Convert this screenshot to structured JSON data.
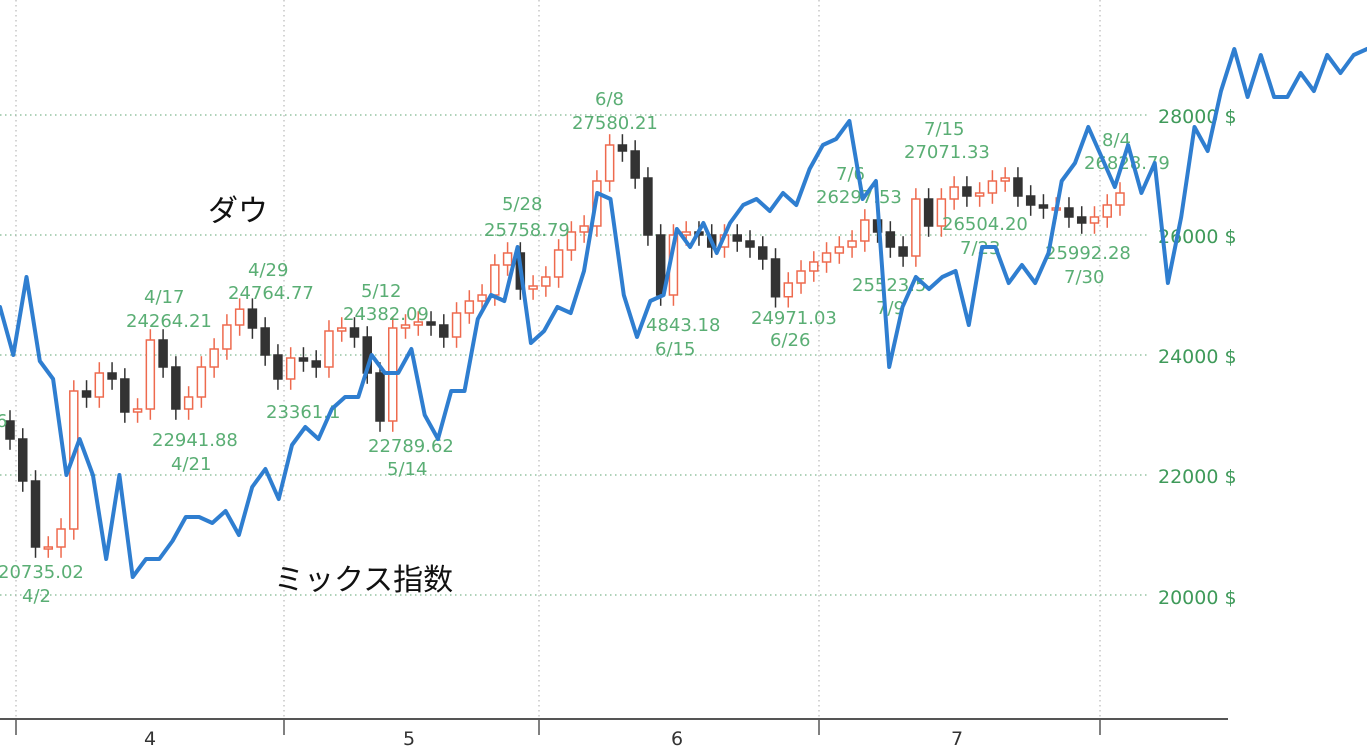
{
  "chart_data": {
    "type": "line",
    "series": [
      {
        "name": "ダウ",
        "kind": "candlestick",
        "color_up": "#ee6a4e",
        "color_down": "#333333",
        "values": [
          22600,
          21900,
          20800,
          20800,
          21100,
          23400,
          23300,
          23700,
          23600,
          23050,
          23100,
          24250,
          23800,
          23100,
          23300,
          23800,
          24100,
          24500,
          24764,
          24450,
          24000,
          23600,
          23950,
          23900,
          23800,
          24400,
          24450,
          24300,
          23700,
          22900,
          24450,
          24500,
          24550,
          24500,
          24300,
          24700,
          24900,
          25000,
          25500,
          25700,
          25100,
          25150,
          25300,
          25750,
          26050,
          26150,
          26900,
          27500,
          27400,
          26950,
          26000,
          25000,
          26000,
          26050,
          26000,
          25800,
          26000,
          25900,
          25800,
          25600,
          24971,
          25200,
          25400,
          25550,
          25700,
          25800,
          25900,
          26250,
          26050,
          25800,
          25650,
          26600,
          26150,
          26600,
          26800,
          26650,
          26700,
          26900,
          26950,
          26650,
          26500,
          26450,
          26450,
          26300,
          26200,
          26300,
          26500,
          26700
        ]
      },
      {
        "name": "ミックス指数",
        "color": "#2f7ed0",
        "values": [
          24800,
          24000,
          25300,
          23900,
          23600,
          22000,
          22600,
          22000,
          20600,
          22000,
          20300,
          20600,
          20600,
          20900,
          21300,
          21300,
          21200,
          21400,
          21000,
          21800,
          22100,
          21600,
          22500,
          22800,
          22600,
          23100,
          23300,
          23300,
          24000,
          23700,
          23700,
          24100,
          23000,
          22600,
          23400,
          23400,
          24600,
          25000,
          24900,
          25800,
          24200,
          24400,
          24800,
          24700,
          25400,
          26700,
          26600,
          25000,
          24300,
          24900,
          25000,
          26100,
          25800,
          26200,
          25700,
          26200,
          26500,
          26600,
          26400,
          26700,
          26500,
          27100,
          27500,
          27600,
          27900,
          26600,
          26900,
          23800,
          24800,
          25300,
          25100,
          25300,
          25400,
          24500,
          25800,
          25800,
          25200,
          25500,
          25200,
          25700,
          26900,
          27200,
          27800,
          27300,
          26800,
          27500,
          26700,
          27200,
          25200,
          26300,
          27800,
          27400,
          28400,
          29100,
          28300,
          29000,
          28300,
          28300,
          28700,
          28400,
          29000,
          28700,
          29000,
          29100
        ]
      }
    ],
    "ylim": [
      18000,
      29500
    ],
    "yticks": [
      "28000 $",
      "26000 $",
      "24000 $",
      "22000 $",
      "20000 $"
    ],
    "ytick_values": [
      28000,
      26000,
      24000,
      22000,
      20000
    ],
    "xticks": [
      "4",
      "5",
      "6",
      "7"
    ],
    "grid": true,
    "series_labels": [
      "ダウ",
      "ミックス指数"
    ],
    "annotations": [
      {
        "text": "6"
      },
      {
        "text": "20735.02"
      },
      {
        "text": "4/2"
      },
      {
        "text": "4/17"
      },
      {
        "text": "24264.21"
      },
      {
        "text": "22941.88"
      },
      {
        "text": "4/21"
      },
      {
        "text": "4/29"
      },
      {
        "text": "24764.77"
      },
      {
        "text": "23361.1"
      },
      {
        "text": "5/12"
      },
      {
        "text": "24382.09"
      },
      {
        "text": "22789.62"
      },
      {
        "text": "5/14"
      },
      {
        "text": "5/28"
      },
      {
        "text": "25758.79"
      },
      {
        "text": "6/8"
      },
      {
        "text": "27580.21"
      },
      {
        "text": "4843.18"
      },
      {
        "text": "6/15"
      },
      {
        "text": "24971.03"
      },
      {
        "text": "6/26"
      },
      {
        "text": "7/6"
      },
      {
        "text": "26297.53"
      },
      {
        "text": "25523.5"
      },
      {
        "text": "7/9"
      },
      {
        "text": "7/15"
      },
      {
        "text": "27071.33"
      },
      {
        "text": "26504.20"
      },
      {
        "text": "7/23"
      },
      {
        "text": "25992.28"
      },
      {
        "text": "7/30"
      },
      {
        "text": "8/4"
      },
      {
        "text": "26828.79"
      }
    ]
  }
}
